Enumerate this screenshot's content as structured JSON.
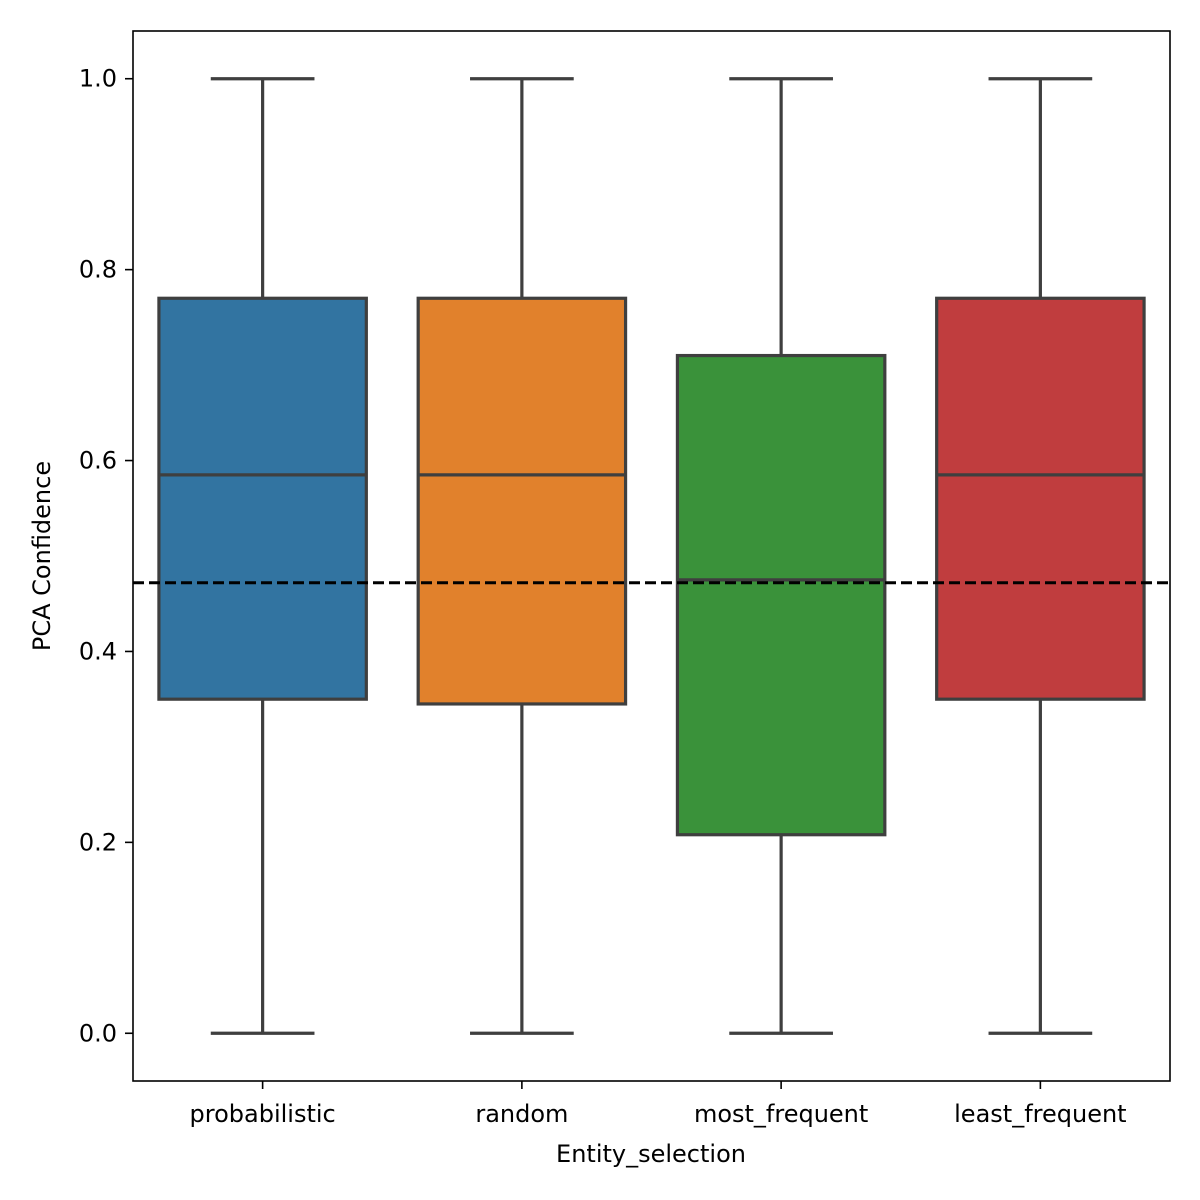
{
  "chart_data": {
    "type": "box",
    "title": "",
    "xlabel": "Entity_selection",
    "ylabel": "PCA Confidence",
    "ylim": [
      -0.05,
      1.05
    ],
    "yticks": [
      0.0,
      0.2,
      0.4,
      0.6,
      0.8,
      1.0
    ],
    "ytick_labels": [
      "0.0",
      "0.2",
      "0.4",
      "0.6",
      "0.8",
      "1.0"
    ],
    "categories": [
      "probabilistic",
      "random",
      "most_frequent",
      "least_frequent"
    ],
    "boxes": [
      {
        "category": "probabilistic",
        "whisker_low": 0.0,
        "q1": 0.35,
        "median": 0.585,
        "q3": 0.77,
        "whisker_high": 1.0,
        "color": "#3274a1"
      },
      {
        "category": "random",
        "whisker_low": 0.0,
        "q1": 0.345,
        "median": 0.585,
        "q3": 0.77,
        "whisker_high": 1.0,
        "color": "#e1812c"
      },
      {
        "category": "most_frequent",
        "whisker_low": 0.0,
        "q1": 0.208,
        "median": 0.475,
        "q3": 0.71,
        "whisker_high": 1.0,
        "color": "#3a923a"
      },
      {
        "category": "least_frequent",
        "whisker_low": 0.0,
        "q1": 0.35,
        "median": 0.585,
        "q3": 0.77,
        "whisker_high": 1.0,
        "color": "#c03d3e"
      }
    ],
    "reference_line": {
      "y": 0.472,
      "style": "dashed",
      "color": "#000000"
    },
    "grid": false,
    "legend": "none"
  }
}
